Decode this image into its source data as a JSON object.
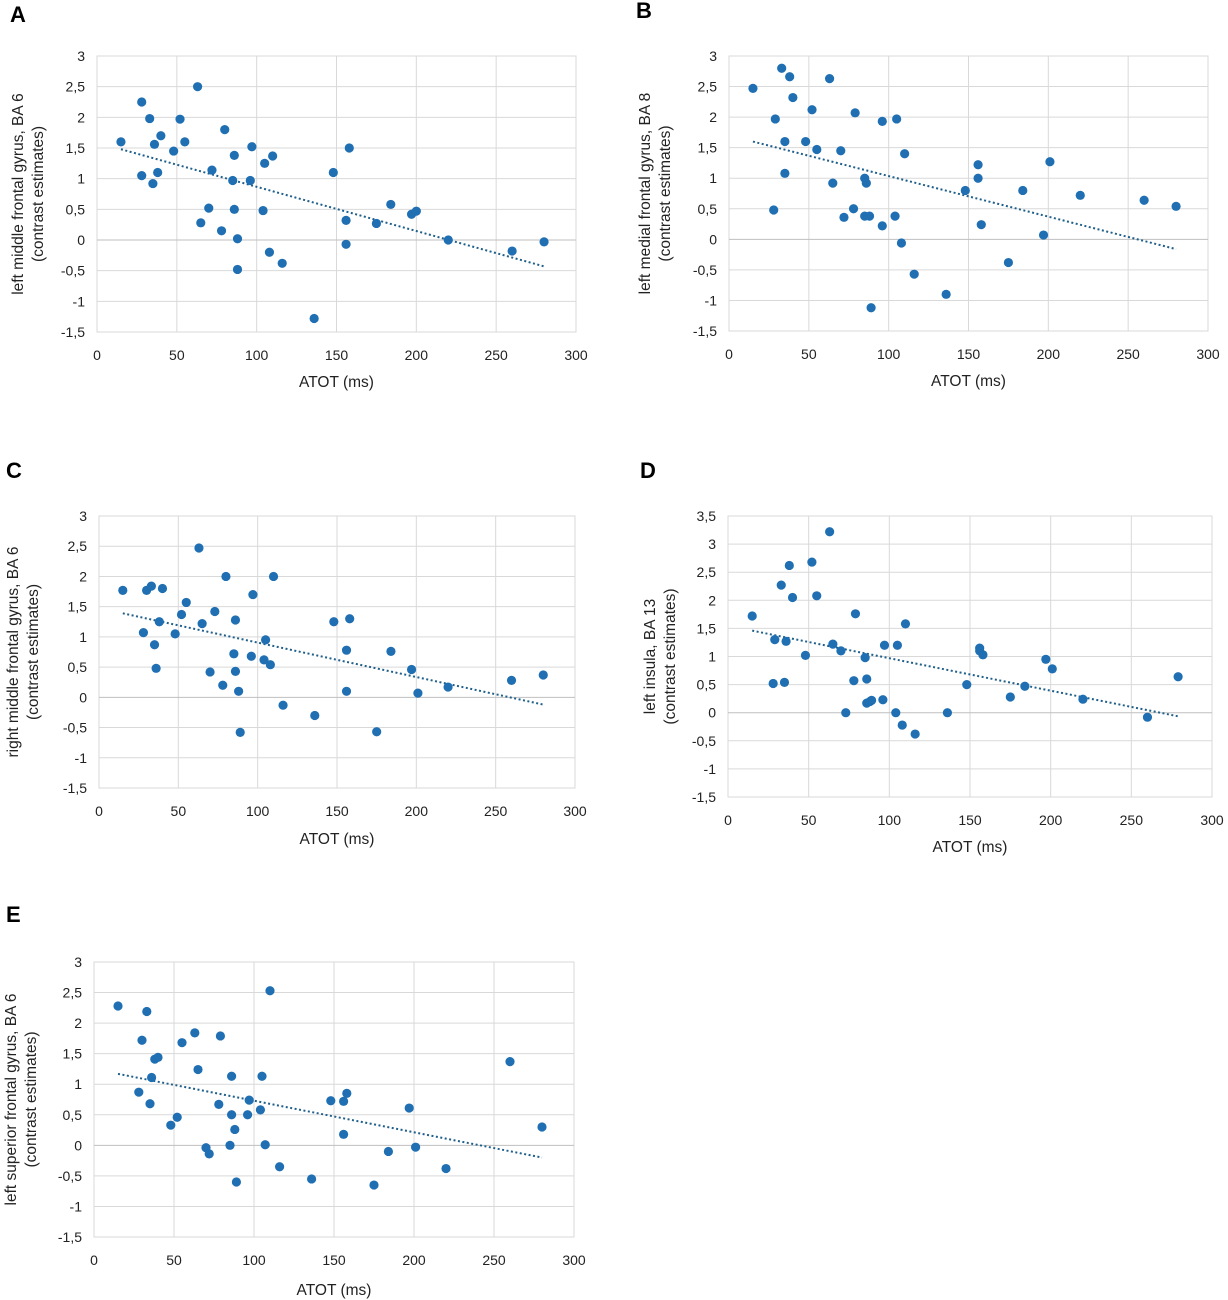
{
  "colors": {
    "points": "#1f6fb2",
    "trendline": "#1f5f8b"
  },
  "chart_data": [
    {
      "type": "scatter",
      "panel": "A",
      "title": "",
      "xlabel": "ATOT (ms)",
      "ylabel": [
        "left middle frontal gyrus, BA 6",
        "(contrast estimates)"
      ],
      "xlim": [
        0,
        300
      ],
      "ylim": [
        -1.5,
        3
      ],
      "x_ticks": [
        0,
        50,
        100,
        150,
        200,
        250,
        300
      ],
      "y_ticks": [
        3,
        2.5,
        2,
        1.5,
        1,
        0.5,
        0,
        -0.5,
        -1,
        -1.5
      ],
      "x_tick_labels": [
        "0",
        "50",
        "100",
        "150",
        "200",
        "250",
        "300"
      ],
      "y_tick_labels": [
        "3",
        "2,5",
        "2",
        "1,5",
        "1",
        "0,5",
        "0",
        "-0,5",
        "-1",
        "-1,5"
      ],
      "points": [
        [
          15,
          1.6
        ],
        [
          28,
          2.25
        ],
        [
          28,
          1.05
        ],
        [
          33,
          1.98
        ],
        [
          35,
          0.92
        ],
        [
          36,
          1.56
        ],
        [
          38,
          1.1
        ],
        [
          40,
          1.7
        ],
        [
          48,
          1.45
        ],
        [
          52,
          1.97
        ],
        [
          55,
          1.6
        ],
        [
          63,
          2.5
        ],
        [
          65,
          0.28
        ],
        [
          70,
          0.52
        ],
        [
          72,
          1.14
        ],
        [
          78,
          0.15
        ],
        [
          80,
          1.8
        ],
        [
          85,
          0.97
        ],
        [
          86,
          0.5
        ],
        [
          86,
          1.38
        ],
        [
          88,
          0.02
        ],
        [
          88,
          -0.48
        ],
        [
          96,
          0.97
        ],
        [
          97,
          1.52
        ],
        [
          104,
          0.48
        ],
        [
          105,
          1.25
        ],
        [
          108,
          -0.2
        ],
        [
          110,
          1.37
        ],
        [
          116,
          -0.38
        ],
        [
          136,
          -1.28
        ],
        [
          148,
          1.1
        ],
        [
          156,
          -0.07
        ],
        [
          156,
          0.32
        ],
        [
          158,
          1.5
        ],
        [
          175,
          0.27
        ],
        [
          184,
          0.58
        ],
        [
          197,
          0.42
        ],
        [
          200,
          0.47
        ],
        [
          220,
          0.0
        ],
        [
          260,
          -0.18
        ],
        [
          280,
          -0.03
        ]
      ],
      "trendline": {
        "x": [
          15,
          280
        ],
        "y": [
          1.48,
          -0.43
        ]
      }
    },
    {
      "type": "scatter",
      "panel": "B",
      "title": "",
      "xlabel": "ATOT (ms)",
      "ylabel": [
        "left medial frontal gyrus, BA 8",
        "(contrast estimates)"
      ],
      "xlim": [
        0,
        300
      ],
      "ylim": [
        -1.5,
        3
      ],
      "x_ticks": [
        0,
        50,
        100,
        150,
        200,
        250,
        300
      ],
      "y_ticks": [
        3,
        2.5,
        2,
        1.5,
        1,
        0.5,
        0,
        -0.5,
        -1,
        -1.5
      ],
      "x_tick_labels": [
        "0",
        "50",
        "100",
        "150",
        "200",
        "250",
        "300"
      ],
      "y_tick_labels": [
        "3",
        "2,5",
        "2",
        "1,5",
        "1",
        "0,5",
        "0",
        "-0,5",
        "-1",
        "-1,5"
      ],
      "points": [
        [
          15,
          2.47
        ],
        [
          28,
          0.48
        ],
        [
          29,
          1.97
        ],
        [
          33,
          2.8
        ],
        [
          35,
          1.6
        ],
        [
          35,
          1.08
        ],
        [
          38,
          2.66
        ],
        [
          40,
          2.32
        ],
        [
          48,
          1.6
        ],
        [
          52,
          2.12
        ],
        [
          55,
          1.47
        ],
        [
          63,
          2.63
        ],
        [
          65,
          0.92
        ],
        [
          70,
          1.45
        ],
        [
          72,
          0.36
        ],
        [
          78,
          0.5
        ],
        [
          79,
          2.07
        ],
        [
          85,
          0.38
        ],
        [
          85,
          1.0
        ],
        [
          86,
          0.92
        ],
        [
          88,
          0.38
        ],
        [
          89,
          -1.12
        ],
        [
          96,
          1.93
        ],
        [
          96,
          0.22
        ],
        [
          104,
          0.38
        ],
        [
          105,
          1.97
        ],
        [
          108,
          -0.06
        ],
        [
          110,
          1.4
        ],
        [
          116,
          -0.57
        ],
        [
          136,
          -0.9
        ],
        [
          148,
          0.8
        ],
        [
          156,
          1.22
        ],
        [
          156,
          1.0
        ],
        [
          158,
          0.24
        ],
        [
          175,
          -0.38
        ],
        [
          184,
          0.8
        ],
        [
          197,
          0.07
        ],
        [
          201,
          1.27
        ],
        [
          220,
          0.72
        ],
        [
          260,
          0.64
        ],
        [
          280,
          0.54
        ]
      ],
      "trendline": {
        "x": [
          15,
          280
        ],
        "y": [
          1.6,
          -0.16
        ]
      }
    },
    {
      "type": "scatter",
      "panel": "C",
      "title": "",
      "xlabel": "ATOT (ms)",
      "ylabel": [
        "right middle frontal gyrus, BA 6",
        "(contrast estimates)"
      ],
      "xlim": [
        0,
        300
      ],
      "ylim": [
        -1.5,
        3
      ],
      "x_ticks": [
        0,
        50,
        100,
        150,
        200,
        250,
        300
      ],
      "y_ticks": [
        3,
        2.5,
        2,
        1.5,
        1,
        0.5,
        0,
        -0.5,
        -1,
        -1.5
      ],
      "x_tick_labels": [
        "0",
        "50",
        "100",
        "150",
        "200",
        "250",
        "300"
      ],
      "y_tick_labels": [
        "3",
        "2,5",
        "2",
        "1,5",
        "1",
        "0,5",
        "0",
        "-0,5",
        "-1",
        "-1,5"
      ],
      "points": [
        [
          15,
          1.77
        ],
        [
          28,
          1.07
        ],
        [
          30,
          1.77
        ],
        [
          33,
          1.84
        ],
        [
          35,
          0.87
        ],
        [
          36,
          0.48
        ],
        [
          38,
          1.25
        ],
        [
          40,
          1.8
        ],
        [
          48,
          1.05
        ],
        [
          52,
          1.37
        ],
        [
          55,
          1.57
        ],
        [
          63,
          2.47
        ],
        [
          65,
          1.22
        ],
        [
          70,
          0.42
        ],
        [
          73,
          1.42
        ],
        [
          78,
          0.2
        ],
        [
          80,
          2.0
        ],
        [
          85,
          0.72
        ],
        [
          86,
          0.43
        ],
        [
          86,
          1.28
        ],
        [
          88,
          0.1
        ],
        [
          89,
          -0.58
        ],
        [
          96,
          0.68
        ],
        [
          97,
          1.7
        ],
        [
          104,
          0.62
        ],
        [
          105,
          0.95
        ],
        [
          108,
          0.54
        ],
        [
          110,
          2.0
        ],
        [
          116,
          -0.13
        ],
        [
          136,
          -0.3
        ],
        [
          148,
          1.25
        ],
        [
          156,
          0.78
        ],
        [
          156,
          0.1
        ],
        [
          158,
          1.3
        ],
        [
          175,
          -0.57
        ],
        [
          184,
          0.76
        ],
        [
          197,
          0.46
        ],
        [
          201,
          0.07
        ],
        [
          220,
          0.17
        ],
        [
          260,
          0.28
        ],
        [
          280,
          0.37
        ]
      ],
      "trendline": {
        "x": [
          15,
          280
        ],
        "y": [
          1.39,
          -0.12
        ]
      }
    },
    {
      "type": "scatter",
      "panel": "D",
      "title": "",
      "xlabel": "ATOT (ms)",
      "ylabel": [
        "left insula, BA 13",
        "(contrast estimates)"
      ],
      "xlim": [
        0,
        300
      ],
      "ylim": [
        -1.5,
        3.5
      ],
      "x_ticks": [
        0,
        50,
        100,
        150,
        200,
        250,
        300
      ],
      "y_ticks": [
        3.5,
        3,
        2.5,
        2,
        1.5,
        1,
        0.5,
        0,
        -0.5,
        -1,
        -1.5
      ],
      "x_tick_labels": [
        "0",
        "50",
        "100",
        "150",
        "200",
        "250",
        "300"
      ],
      "y_tick_labels": [
        "3,5",
        "3",
        "2,5",
        "2",
        "1,5",
        "1",
        "0,5",
        "0",
        "-0,5",
        "-1",
        "-1,5"
      ],
      "points": [
        [
          15,
          1.72
        ],
        [
          28,
          0.52
        ],
        [
          29,
          1.3
        ],
        [
          33,
          2.27
        ],
        [
          35,
          0.54
        ],
        [
          36,
          1.27
        ],
        [
          38,
          2.62
        ],
        [
          40,
          2.05
        ],
        [
          48,
          1.02
        ],
        [
          52,
          2.68
        ],
        [
          55,
          2.08
        ],
        [
          63,
          3.22
        ],
        [
          65,
          1.22
        ],
        [
          70,
          1.1
        ],
        [
          73,
          0.0
        ],
        [
          78,
          0.57
        ],
        [
          79,
          1.76
        ],
        [
          85,
          0.98
        ],
        [
          86,
          0.6
        ],
        [
          86,
          0.17
        ],
        [
          88,
          0.2
        ],
        [
          89,
          0.22
        ],
        [
          96,
          0.23
        ],
        [
          97,
          1.2
        ],
        [
          104,
          0.0
        ],
        [
          105,
          1.2
        ],
        [
          108,
          -0.22
        ],
        [
          110,
          1.58
        ],
        [
          116,
          -0.38
        ],
        [
          136,
          0.0
        ],
        [
          148,
          0.5
        ],
        [
          156,
          1.15
        ],
        [
          156,
          1.1
        ],
        [
          158,
          1.03
        ],
        [
          175,
          0.28
        ],
        [
          184,
          0.47
        ],
        [
          197,
          0.95
        ],
        [
          201,
          0.78
        ],
        [
          220,
          0.24
        ],
        [
          260,
          -0.08
        ],
        [
          279,
          0.64
        ]
      ],
      "trendline": {
        "x": [
          15,
          280
        ],
        "y": [
          1.46,
          -0.07
        ]
      }
    },
    {
      "type": "scatter",
      "panel": "E",
      "title": "",
      "xlabel": "ATOT (ms)",
      "ylabel": [
        "left superior frontal gyrus, BA 6",
        "(contrast estimates)"
      ],
      "xlim": [
        0,
        300
      ],
      "ylim": [
        -1.5,
        3
      ],
      "x_ticks": [
        0,
        50,
        100,
        150,
        200,
        250,
        300
      ],
      "y_ticks": [
        3,
        2.5,
        2,
        1.5,
        1,
        0.5,
        0,
        -0.5,
        -1,
        -1.5
      ],
      "x_tick_labels": [
        "0",
        "50",
        "100",
        "150",
        "200",
        "250",
        "300"
      ],
      "y_tick_labels": [
        "3",
        "2,5",
        "2",
        "1,5",
        "1",
        "0,5",
        "0",
        "-0,5",
        "-1",
        "-1,5"
      ],
      "points": [
        [
          15,
          2.28
        ],
        [
          28,
          0.87
        ],
        [
          30,
          1.72
        ],
        [
          33,
          2.19
        ],
        [
          35,
          0.68
        ],
        [
          36,
          1.11
        ],
        [
          38,
          1.41
        ],
        [
          40,
          1.44
        ],
        [
          48,
          0.33
        ],
        [
          52,
          0.46
        ],
        [
          55,
          1.68
        ],
        [
          63,
          1.84
        ],
        [
          65,
          1.24
        ],
        [
          70,
          -0.04
        ],
        [
          72,
          -0.14
        ],
        [
          78,
          0.67
        ],
        [
          79,
          1.79
        ],
        [
          85,
          -0.0
        ],
        [
          86,
          0.5
        ],
        [
          86,
          1.13
        ],
        [
          88,
          0.26
        ],
        [
          89,
          -0.6
        ],
        [
          96,
          0.5
        ],
        [
          97,
          0.74
        ],
        [
          104,
          0.58
        ],
        [
          105,
          1.13
        ],
        [
          107,
          0.01
        ],
        [
          110,
          2.53
        ],
        [
          116,
          -0.35
        ],
        [
          136,
          -0.55
        ],
        [
          148,
          0.73
        ],
        [
          156,
          0.72
        ],
        [
          156,
          0.18
        ],
        [
          158,
          0.85
        ],
        [
          175,
          -0.65
        ],
        [
          184,
          -0.1
        ],
        [
          197,
          0.61
        ],
        [
          201,
          -0.03
        ],
        [
          220,
          -0.38
        ],
        [
          260,
          1.37
        ],
        [
          280,
          0.3
        ]
      ],
      "trendline": {
        "x": [
          15,
          280
        ],
        "y": [
          1.17,
          -0.2
        ]
      }
    }
  ]
}
